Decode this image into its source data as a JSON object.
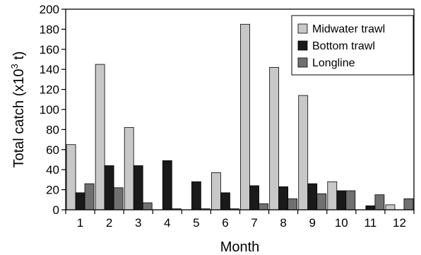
{
  "chart_data": {
    "type": "bar",
    "xlabel": "Month",
    "ylabel": "Total catch (x10",
    "ylabel_sup": "3",
    "ylabel_suffix": " t)",
    "ylim": [
      0,
      200
    ],
    "yticks": [
      0,
      20,
      40,
      60,
      80,
      100,
      120,
      140,
      160,
      180,
      200
    ],
    "grid": false,
    "legend_position": "top-right",
    "categories": [
      "1",
      "2",
      "3",
      "4",
      "5",
      "6",
      "7",
      "8",
      "9",
      "10",
      "11",
      "12"
    ],
    "series": [
      {
        "name": "Midwater trawl",
        "color": "#c8c8c8",
        "values": [
          65,
          145,
          82,
          0,
          0,
          37,
          185,
          142,
          114,
          28,
          0,
          5
        ]
      },
      {
        "name": "Bottom trawl",
        "color": "#1a1a1a",
        "values": [
          17,
          44,
          44,
          49,
          28,
          17,
          24,
          23,
          26,
          19,
          4,
          0
        ]
      },
      {
        "name": "Longline",
        "color": "#707070",
        "values": [
          26,
          22,
          7,
          1,
          1,
          1,
          6,
          11,
          16,
          19,
          15,
          11
        ]
      }
    ]
  }
}
